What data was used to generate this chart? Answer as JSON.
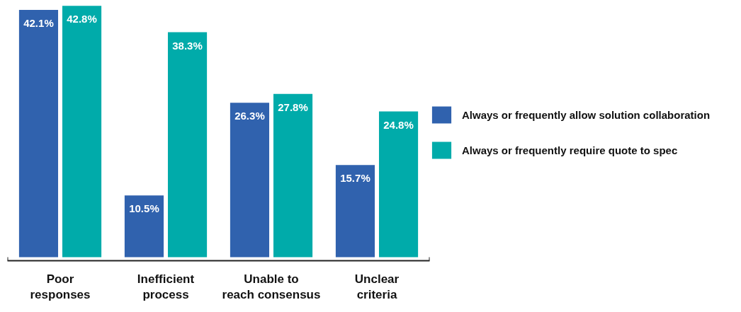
{
  "chart_data": {
    "type": "bar",
    "categories": [
      "Poor\nresponses",
      "Inefficient\nprocess",
      "Unable to\nreach consensus",
      "Unclear\ncriteria"
    ],
    "series": [
      {
        "name": "Always or frequently allow solution collaboration",
        "color": "#3062ae",
        "values": [
          42.1,
          10.5,
          26.3,
          15.7
        ],
        "value_labels": [
          "42.1%",
          "10.5%",
          "26.3%",
          "15.7%"
        ]
      },
      {
        "name": "Always or frequently require quote to spec",
        "color": "#00abaa",
        "values": [
          42.8,
          38.3,
          27.8,
          24.8
        ],
        "value_labels": [
          "42.8%",
          "38.3%",
          "27.8%",
          "24.8%"
        ]
      }
    ],
    "ylim": [
      0,
      43
    ],
    "tick_labels": "x",
    "grid": false,
    "legend": "right"
  }
}
